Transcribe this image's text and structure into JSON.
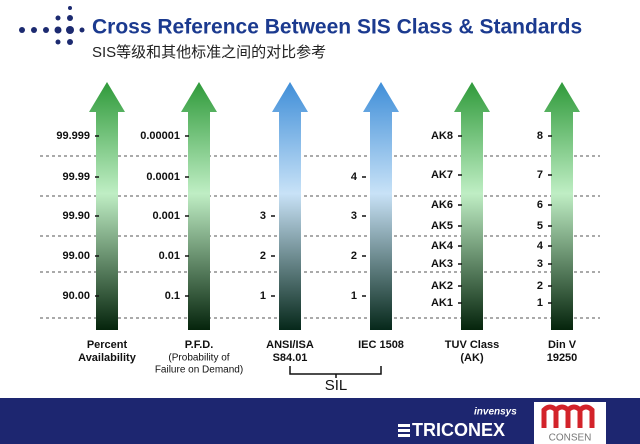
{
  "header": {
    "title": "Cross Reference Between SIS Class & Standards",
    "subtitle": "SIS等级和其他标准之间的对比参考"
  },
  "columns": [
    {
      "levels": [
        "99.999",
        "99.99",
        "99.90",
        "99.00",
        "90.00"
      ],
      "caption": [
        "Percent",
        "Availability"
      ]
    },
    {
      "levels": [
        "0.00001",
        "0.0001",
        "0.001",
        "0.01",
        "0.1"
      ],
      "caption": [
        "P.F.D."
      ],
      "note": [
        "(Probability of",
        "Failure on Demand)"
      ]
    },
    {
      "levels": [
        "3",
        "2",
        "1"
      ],
      "caption": [
        "ANSI/ISA",
        "S84.01"
      ]
    },
    {
      "levels": [
        "4",
        "3",
        "2",
        "1"
      ],
      "caption": [
        "IEC 1508"
      ]
    },
    {
      "levels": [
        "AK8",
        "AK7",
        "AK6",
        "AK5",
        "AK4",
        "AK3",
        "AK2",
        "AK1"
      ],
      "caption": [
        "TUV Class",
        "(AK)"
      ]
    },
    {
      "levels": [
        "8",
        "7",
        "6",
        "5",
        "4",
        "3",
        "2",
        "1"
      ],
      "caption": [
        "Din V",
        "19250"
      ]
    }
  ],
  "group": {
    "label": "SIL"
  },
  "footer": {
    "brand_small": "invensys",
    "brand": "TRICONEX",
    "partner": "CONSEN"
  }
}
